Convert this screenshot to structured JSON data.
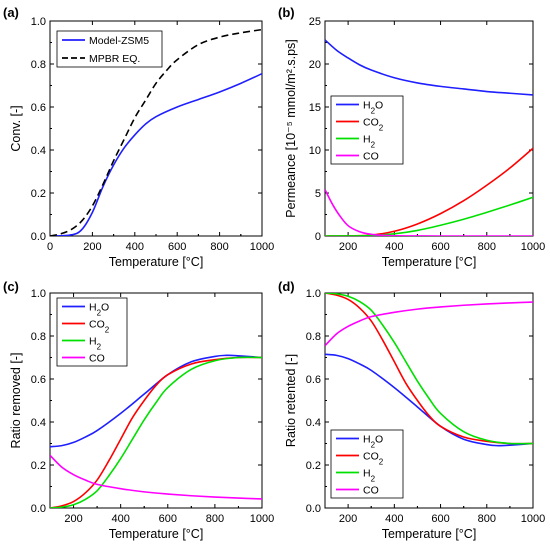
{
  "chart_data": [
    {
      "panel_label": "(a)",
      "type": "line",
      "xlabel": "Temperature [°C]",
      "ylabel": "Conv. [-]",
      "xlim": [
        0,
        1000
      ],
      "ylim": [
        0,
        1.0
      ],
      "xticks": [
        "0",
        "200",
        "400",
        "600",
        "800",
        "1000"
      ],
      "yticks": [
        "0.0",
        "0.2",
        "0.4",
        "0.6",
        "0.8",
        "1.0"
      ],
      "legend": "top-left",
      "series": [
        {
          "name": "Model-ZSM5",
          "color": "#1f1fff",
          "dash": "solid",
          "x": [
            0,
            100,
            150,
            200,
            250,
            300,
            350,
            400,
            450,
            500,
            600,
            700,
            800,
            900,
            1000
          ],
          "y": [
            0.0,
            0.005,
            0.03,
            0.11,
            0.23,
            0.33,
            0.41,
            0.47,
            0.52,
            0.555,
            0.6,
            0.635,
            0.67,
            0.71,
            0.755
          ]
        },
        {
          "name": "MPBR EQ.",
          "color": "#000000",
          "dash": "dashed",
          "x": [
            0,
            50,
            100,
            150,
            200,
            250,
            300,
            350,
            400,
            450,
            500,
            550,
            600,
            700,
            800,
            900,
            1000
          ],
          "y": [
            0.0,
            0.01,
            0.03,
            0.07,
            0.14,
            0.24,
            0.35,
            0.45,
            0.55,
            0.63,
            0.71,
            0.77,
            0.82,
            0.89,
            0.925,
            0.945,
            0.96
          ]
        }
      ]
    },
    {
      "panel_label": "(b)",
      "type": "line",
      "xlabel": "Temperature [°C]",
      "ylabel": "Permeance [10⁻⁵ mmol/m².s.ps]",
      "xlim": [
        100,
        1000
      ],
      "ylim": [
        0,
        25
      ],
      "xticks": [
        "200",
        "400",
        "600",
        "800",
        "1000"
      ],
      "yticks": [
        "0",
        "5",
        "10",
        "15",
        "20",
        "25"
      ],
      "legend": "middle-left",
      "series": [
        {
          "name": "H2O",
          "color": "#1f1fff",
          "x": [
            100,
            150,
            200,
            250,
            300,
            400,
            500,
            600,
            700,
            800,
            900,
            1000
          ],
          "y": [
            22.8,
            21.6,
            20.7,
            19.9,
            19.3,
            18.4,
            17.8,
            17.4,
            17.1,
            16.8,
            16.6,
            16.4
          ]
        },
        {
          "name": "CO2",
          "color": "#ff0000",
          "x": [
            100,
            200,
            300,
            400,
            500,
            600,
            700,
            800,
            900,
            1000
          ],
          "y": [
            0.0,
            0.02,
            0.1,
            0.55,
            1.4,
            2.6,
            4.1,
            5.9,
            7.9,
            10.2
          ]
        },
        {
          "name": "H2",
          "color": "#00e000",
          "x": [
            100,
            200,
            300,
            400,
            500,
            600,
            700,
            800,
            900,
            1000
          ],
          "y": [
            0.0,
            0.01,
            0.05,
            0.25,
            0.65,
            1.25,
            1.95,
            2.75,
            3.6,
            4.5
          ]
        },
        {
          "name": "CO",
          "color": "#ff00ff",
          "x": [
            100,
            130,
            160,
            200,
            250,
            300,
            350,
            400,
            500,
            600,
            800,
            1000
          ],
          "y": [
            5.4,
            3.8,
            2.5,
            1.2,
            0.5,
            0.2,
            0.08,
            0.03,
            0.01,
            0.0,
            0.0,
            0.0
          ]
        }
      ]
    },
    {
      "panel_label": "(c)",
      "type": "line",
      "xlabel": "Temperature [°C]",
      "ylabel": "Ratio removed [-]",
      "xlim": [
        100,
        1000
      ],
      "ylim": [
        0,
        1.0
      ],
      "xticks": [
        "200",
        "400",
        "600",
        "800",
        "1000"
      ],
      "yticks": [
        "0.0",
        "0.2",
        "0.4",
        "0.6",
        "0.8",
        "1.0"
      ],
      "legend": "top-left",
      "series": [
        {
          "name": "H2O",
          "color": "#1f1fff",
          "x": [
            100,
            150,
            200,
            250,
            300,
            400,
            500,
            600,
            700,
            800,
            850,
            900,
            1000
          ],
          "y": [
            0.285,
            0.29,
            0.305,
            0.33,
            0.36,
            0.44,
            0.53,
            0.62,
            0.68,
            0.705,
            0.71,
            0.708,
            0.7
          ]
        },
        {
          "name": "CO2",
          "color": "#ff0000",
          "x": [
            100,
            150,
            200,
            250,
            300,
            350,
            400,
            450,
            500,
            550,
            600,
            700,
            800,
            900,
            1000
          ],
          "y": [
            0.0,
            0.01,
            0.03,
            0.07,
            0.13,
            0.22,
            0.32,
            0.42,
            0.5,
            0.57,
            0.62,
            0.67,
            0.69,
            0.7,
            0.7
          ]
        },
        {
          "name": "H2",
          "color": "#00e000",
          "x": [
            100,
            150,
            200,
            250,
            300,
            350,
            400,
            450,
            500,
            550,
            600,
            700,
            800,
            900,
            1000
          ],
          "y": [
            0.0,
            0.004,
            0.015,
            0.04,
            0.08,
            0.15,
            0.23,
            0.32,
            0.41,
            0.49,
            0.56,
            0.645,
            0.685,
            0.7,
            0.7
          ]
        },
        {
          "name": "CO",
          "color": "#ff00ff",
          "x": [
            100,
            150,
            200,
            250,
            300,
            400,
            500,
            600,
            700,
            800,
            900,
            1000
          ],
          "y": [
            0.245,
            0.19,
            0.155,
            0.13,
            0.11,
            0.09,
            0.075,
            0.065,
            0.057,
            0.051,
            0.046,
            0.042
          ]
        }
      ]
    },
    {
      "panel_label": "(d)",
      "type": "line",
      "xlabel": "Temperature [°C]",
      "ylabel": "Ratio retented [-]",
      "xlim": [
        100,
        1000
      ],
      "ylim": [
        0,
        1.0
      ],
      "xticks": [
        "200",
        "400",
        "600",
        "800",
        "1000"
      ],
      "yticks": [
        "0.0",
        "0.2",
        "0.4",
        "0.6",
        "0.8",
        "1.0"
      ],
      "legend": "bottom-left",
      "series": [
        {
          "name": "H2O",
          "color": "#1f1fff",
          "x": [
            100,
            150,
            200,
            250,
            300,
            400,
            500,
            600,
            700,
            800,
            850,
            900,
            1000
          ],
          "y": [
            0.715,
            0.71,
            0.695,
            0.67,
            0.64,
            0.56,
            0.47,
            0.38,
            0.32,
            0.295,
            0.29,
            0.292,
            0.3
          ]
        },
        {
          "name": "CO2",
          "color": "#ff0000",
          "x": [
            100,
            150,
            200,
            250,
            300,
            350,
            400,
            450,
            500,
            550,
            600,
            700,
            800,
            900,
            1000
          ],
          "y": [
            1.0,
            0.99,
            0.97,
            0.93,
            0.87,
            0.78,
            0.68,
            0.58,
            0.5,
            0.43,
            0.38,
            0.33,
            0.31,
            0.3,
            0.3
          ]
        },
        {
          "name": "H2",
          "color": "#00e000",
          "x": [
            100,
            150,
            200,
            250,
            300,
            350,
            400,
            450,
            500,
            550,
            600,
            700,
            800,
            900,
            1000
          ],
          "y": [
            1.0,
            0.996,
            0.985,
            0.96,
            0.92,
            0.85,
            0.77,
            0.68,
            0.59,
            0.51,
            0.44,
            0.355,
            0.315,
            0.3,
            0.3
          ]
        },
        {
          "name": "CO",
          "color": "#ff00ff",
          "x": [
            100,
            150,
            200,
            250,
            300,
            400,
            500,
            600,
            700,
            800,
            900,
            1000
          ],
          "y": [
            0.755,
            0.81,
            0.845,
            0.87,
            0.89,
            0.91,
            0.925,
            0.935,
            0.943,
            0.949,
            0.954,
            0.958
          ]
        }
      ]
    }
  ]
}
